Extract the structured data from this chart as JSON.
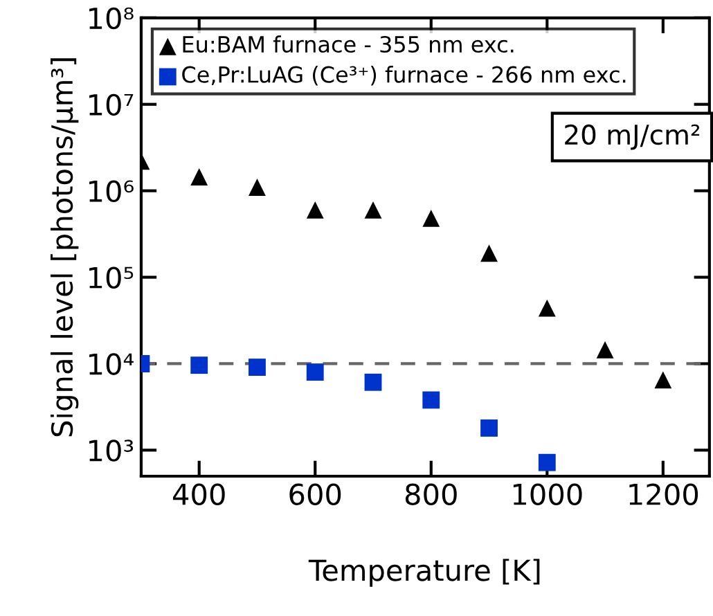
{
  "chart_data": {
    "type": "scatter",
    "xlabel": "Temperature [K]",
    "ylabel": "Signal level [photons/µm³]",
    "x": [
      300,
      400,
      500,
      600,
      700,
      800,
      900,
      1000,
      1100,
      1200
    ],
    "series": [
      {
        "name": "Eu:BAM furnace - 355 nm exc.",
        "color": "#000000",
        "marker": "triangle",
        "values": [
          2200000,
          1450000,
          1100000,
          600000,
          600000,
          480000,
          190000,
          44000,
          14500,
          6500
        ]
      },
      {
        "name": "Ce,Pr:LuAG (Ce³⁺) furnace - 266 nm exc.",
        "color": "#0033cc",
        "marker": "square",
        "values": [
          10000,
          9600,
          9100,
          8000,
          6100,
          3800,
          1800,
          720,
          null,
          null
        ]
      }
    ],
    "log": "y",
    "xlim": [
      300,
      1280
    ],
    "ylim": [
      500,
      100000000
    ],
    "xticks": [
      400,
      600,
      800,
      1000,
      1200
    ],
    "yticks": [
      {
        "value": 1000,
        "label": "10³"
      },
      {
        "value": 10000,
        "label": "10⁴"
      },
      {
        "value": 100000,
        "label": "10⁵"
      },
      {
        "value": 1000000,
        "label": "10⁶"
      },
      {
        "value": 10000000,
        "label": "10⁷"
      },
      {
        "value": 100000000,
        "label": "10⁸"
      }
    ],
    "ref_lines": [
      {
        "axis": "y",
        "value": 10000,
        "color": "#666666",
        "line_style": "dashed"
      }
    ],
    "annotations": [
      "20 mJ/cm²"
    ],
    "grid": false,
    "legend": "top left"
  }
}
